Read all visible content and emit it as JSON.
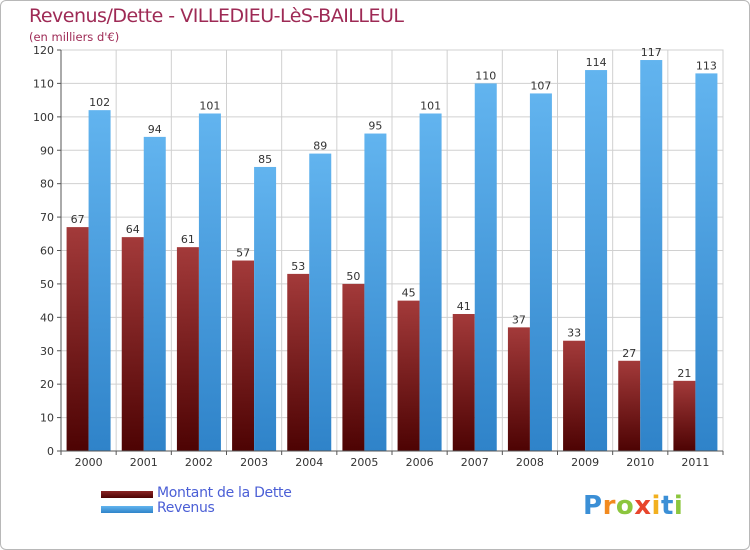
{
  "chart_data": {
    "type": "bar",
    "title": "Revenus/Dette - VILLEDIEU-LèS-BAILLEUL",
    "subtitle": "(en milliers d'€)",
    "categories": [
      "2000",
      "2001",
      "2002",
      "2003",
      "2004",
      "2005",
      "2006",
      "2007",
      "2008",
      "2009",
      "2010",
      "2011"
    ],
    "series": [
      {
        "name": "Montant de la Dette",
        "color": "#7a1a1a",
        "values": [
          67,
          64,
          61,
          57,
          53,
          50,
          45,
          41,
          37,
          33,
          27,
          21
        ]
      },
      {
        "name": "Revenus",
        "color": "#4ea7e8",
        "values": [
          102,
          94,
          101,
          85,
          89,
          95,
          101,
          110,
          107,
          114,
          117,
          113
        ]
      }
    ],
    "ylim": [
      0,
      120
    ],
    "yticks": [
      0,
      10,
      20,
      30,
      40,
      50,
      60,
      70,
      80,
      90,
      100,
      110,
      120
    ],
    "grid": true,
    "legend_position": "bottom-left"
  },
  "logo": {
    "letters": [
      "P",
      "r",
      "o",
      "x",
      "i",
      "t",
      "i"
    ],
    "colors": [
      "#3b8fd6",
      "#f28a1f",
      "#8cc63e",
      "#e8452c",
      "#f2b01f",
      "#3b8fd6",
      "#8cc63e"
    ]
  },
  "colors": {
    "title": "#9e2a55",
    "grid": "#d0d0d0",
    "axis": "#555555",
    "legend_text": "#4b5fd6"
  }
}
